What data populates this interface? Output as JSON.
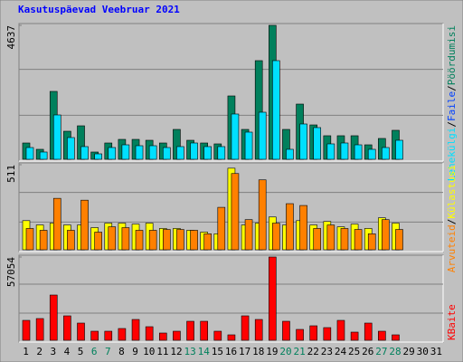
{
  "chart_data": [
    {
      "type": "bar",
      "title": "Kasutuspäevad Veebruar 2021",
      "ylim": [
        0,
        4637
      ],
      "yticks": [
        4637
      ],
      "legend_separator": "/",
      "series": [
        {
          "name": "Lehekülgi",
          "color": "#00e0ff",
          "values": [
            407,
            251,
            1535,
            752,
            439,
            188,
            407,
            501,
            470,
            470,
            407,
            439,
            564,
            439,
            439,
            1567,
            940,
            1629,
            3415,
            345,
            1222,
            1097,
            533,
            564,
            501,
            345,
            407,
            658,
            null,
            null,
            null
          ]
        },
        {
          "name": "Faile",
          "color": "#0040ff",
          "values": [
            null,
            null,
            null,
            null,
            null,
            null,
            null,
            null,
            null,
            null,
            null,
            null,
            null,
            null,
            null,
            null,
            null,
            null,
            null,
            null,
            null,
            null,
            null,
            null,
            null,
            null,
            null,
            null,
            null,
            null,
            null
          ]
        },
        {
          "name": "Pöördumisi",
          "color": "#00805c",
          "values": [
            564,
            345,
            2350,
            971,
            1159,
            251,
            564,
            689,
            689,
            658,
            564,
            1034,
            658,
            564,
            533,
            2193,
            1034,
            3415,
            4637,
            1034,
            1911,
            1190,
            815,
            815,
            815,
            501,
            721,
            1003,
            null,
            null,
            null
          ]
        }
      ]
    },
    {
      "type": "bar",
      "ylim": [
        0,
        511
      ],
      "yticks": [
        511
      ],
      "legend_separator": "/",
      "series": [
        {
          "name": "Arvuteid",
          "color": "#ff8000",
          "values": [
            128,
            117,
            309,
            117,
            298,
            106,
            138,
            133,
            117,
            117,
            122,
            122,
            117,
            96,
            255,
            458,
            181,
            420,
            160,
            277,
            266,
            128,
            149,
            128,
            122,
            96,
            181,
            122,
            null,
            null,
            null
          ]
        },
        {
          "name": "Külastusi",
          "color": "#ffff00",
          "values": [
            175,
            149,
            160,
            149,
            149,
            133,
            160,
            160,
            154,
            160,
            128,
            128,
            117,
            106,
            96,
            490,
            149,
            160,
            197,
            149,
            175,
            149,
            170,
            138,
            154,
            128,
            192,
            160,
            null,
            null,
            null
          ]
        }
      ]
    },
    {
      "type": "bar",
      "ylim": [
        0,
        57054
      ],
      "yticks": [
        57054
      ],
      "categories": [
        "1",
        "2",
        "3",
        "4",
        "5",
        "6",
        "7",
        "8",
        "9",
        "10",
        "11",
        "12",
        "13",
        "14",
        "15",
        "16",
        "17",
        "18",
        "19",
        "20",
        "21",
        "22",
        "23",
        "24",
        "25",
        "26",
        "27",
        "28",
        "29",
        "30",
        "31"
      ],
      "category_colors": [
        "#000000",
        "#000000",
        "#000000",
        "#000000",
        "#000000",
        "#00805c",
        "#00805c",
        "#000000",
        "#000000",
        "#000000",
        "#000000",
        "#000000",
        "#00805c",
        "#00805c",
        "#000000",
        "#000000",
        "#000000",
        "#000000",
        "#000000",
        "#00805c",
        "#00805c",
        "#000000",
        "#000000",
        "#000000",
        "#000000",
        "#000000",
        "#00805c",
        "#00805c",
        "#000000",
        "#000000",
        "#000000"
      ],
      "series": [
        {
          "name": "KBaite",
          "color": "#ff0000",
          "values": [
            13640,
            14880,
            31000,
            16740,
            11780,
            6200,
            6200,
            8060,
            14260,
            9300,
            4960,
            6200,
            13020,
            13020,
            6200,
            3720,
            16740,
            14260,
            57054,
            13020,
            7440,
            9920,
            8680,
            13640,
            5580,
            11780,
            6200,
            3720,
            null,
            null,
            null
          ]
        }
      ]
    }
  ]
}
